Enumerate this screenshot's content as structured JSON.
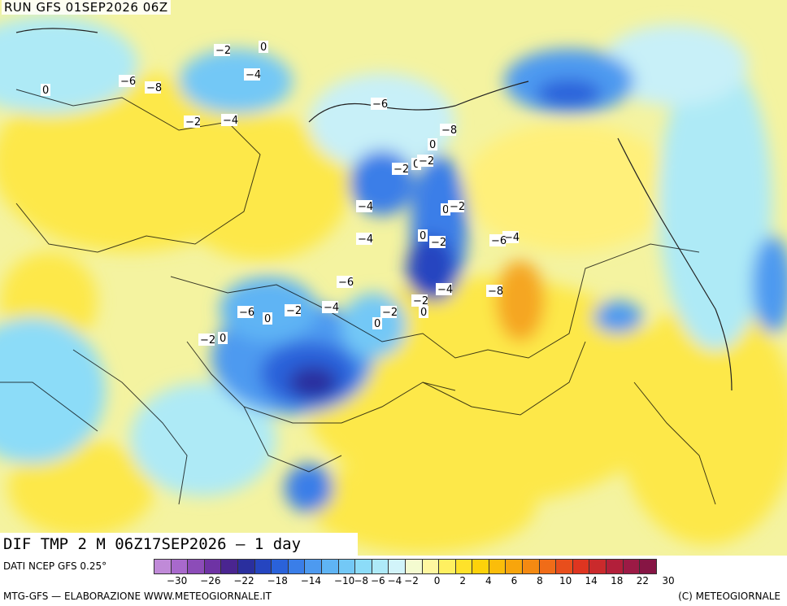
{
  "header": {
    "run_title": "RUN GFS 01SEP2026 06Z"
  },
  "field_title": "DIF TMP 2 M 06Z17SEP2026 — 1 day",
  "footer": {
    "source": "DATI NCEP GFS 0.25°",
    "elaboration": "MTG-GFS — ELABORAZIONE WWW.METEOGIORNALE.IT",
    "copyright": "(C) METEOGIORNALE"
  },
  "colorbar": {
    "colors": [
      "#c08ad8",
      "#a869cc",
      "#8c4cb8",
      "#6e33a4",
      "#4a2590",
      "#2a2f9e",
      "#2545c0",
      "#2a62da",
      "#3a7ee8",
      "#4d9af0",
      "#5fb4f4",
      "#73c8f6",
      "#8cdcf8",
      "#aeeaf8",
      "#d2f4fa",
      "#f4fbd0",
      "#fff7a0",
      "#fff060",
      "#ffe22a",
      "#fdd20a",
      "#fbbd0a",
      "#f8a50c",
      "#f48a12",
      "#f06c18",
      "#e84e1c",
      "#de3520",
      "#ca2a2c",
      "#b21f3a",
      "#9c1a45",
      "#861544"
    ],
    "tick_labels": [
      "−30",
      "−26",
      "−22",
      "−18",
      "−14",
      "−10",
      "−8",
      "−6",
      "−4",
      "−2",
      "0",
      "2",
      "4",
      "6",
      "8",
      "10",
      "14",
      "18",
      "22",
      "30"
    ]
  },
  "map": {
    "legend_colors": {
      "warm": "#fde64a",
      "cold": "#3d78e0",
      "land_border": "#000000"
    },
    "contour_labels": [
      "0",
      "−2",
      "−4",
      "−6",
      "−8",
      "0",
      "−2",
      "−4",
      "−6",
      "−8",
      "0",
      "−2",
      "0",
      "−2",
      "−4",
      "0",
      "−2",
      "0",
      "−2",
      "−4",
      "−6",
      "−4",
      "−6",
      "−8",
      "−4",
      "−2",
      "0",
      "−2",
      "0",
      "−6",
      "−2",
      "0",
      "−4",
      "0",
      "−2"
    ]
  }
}
